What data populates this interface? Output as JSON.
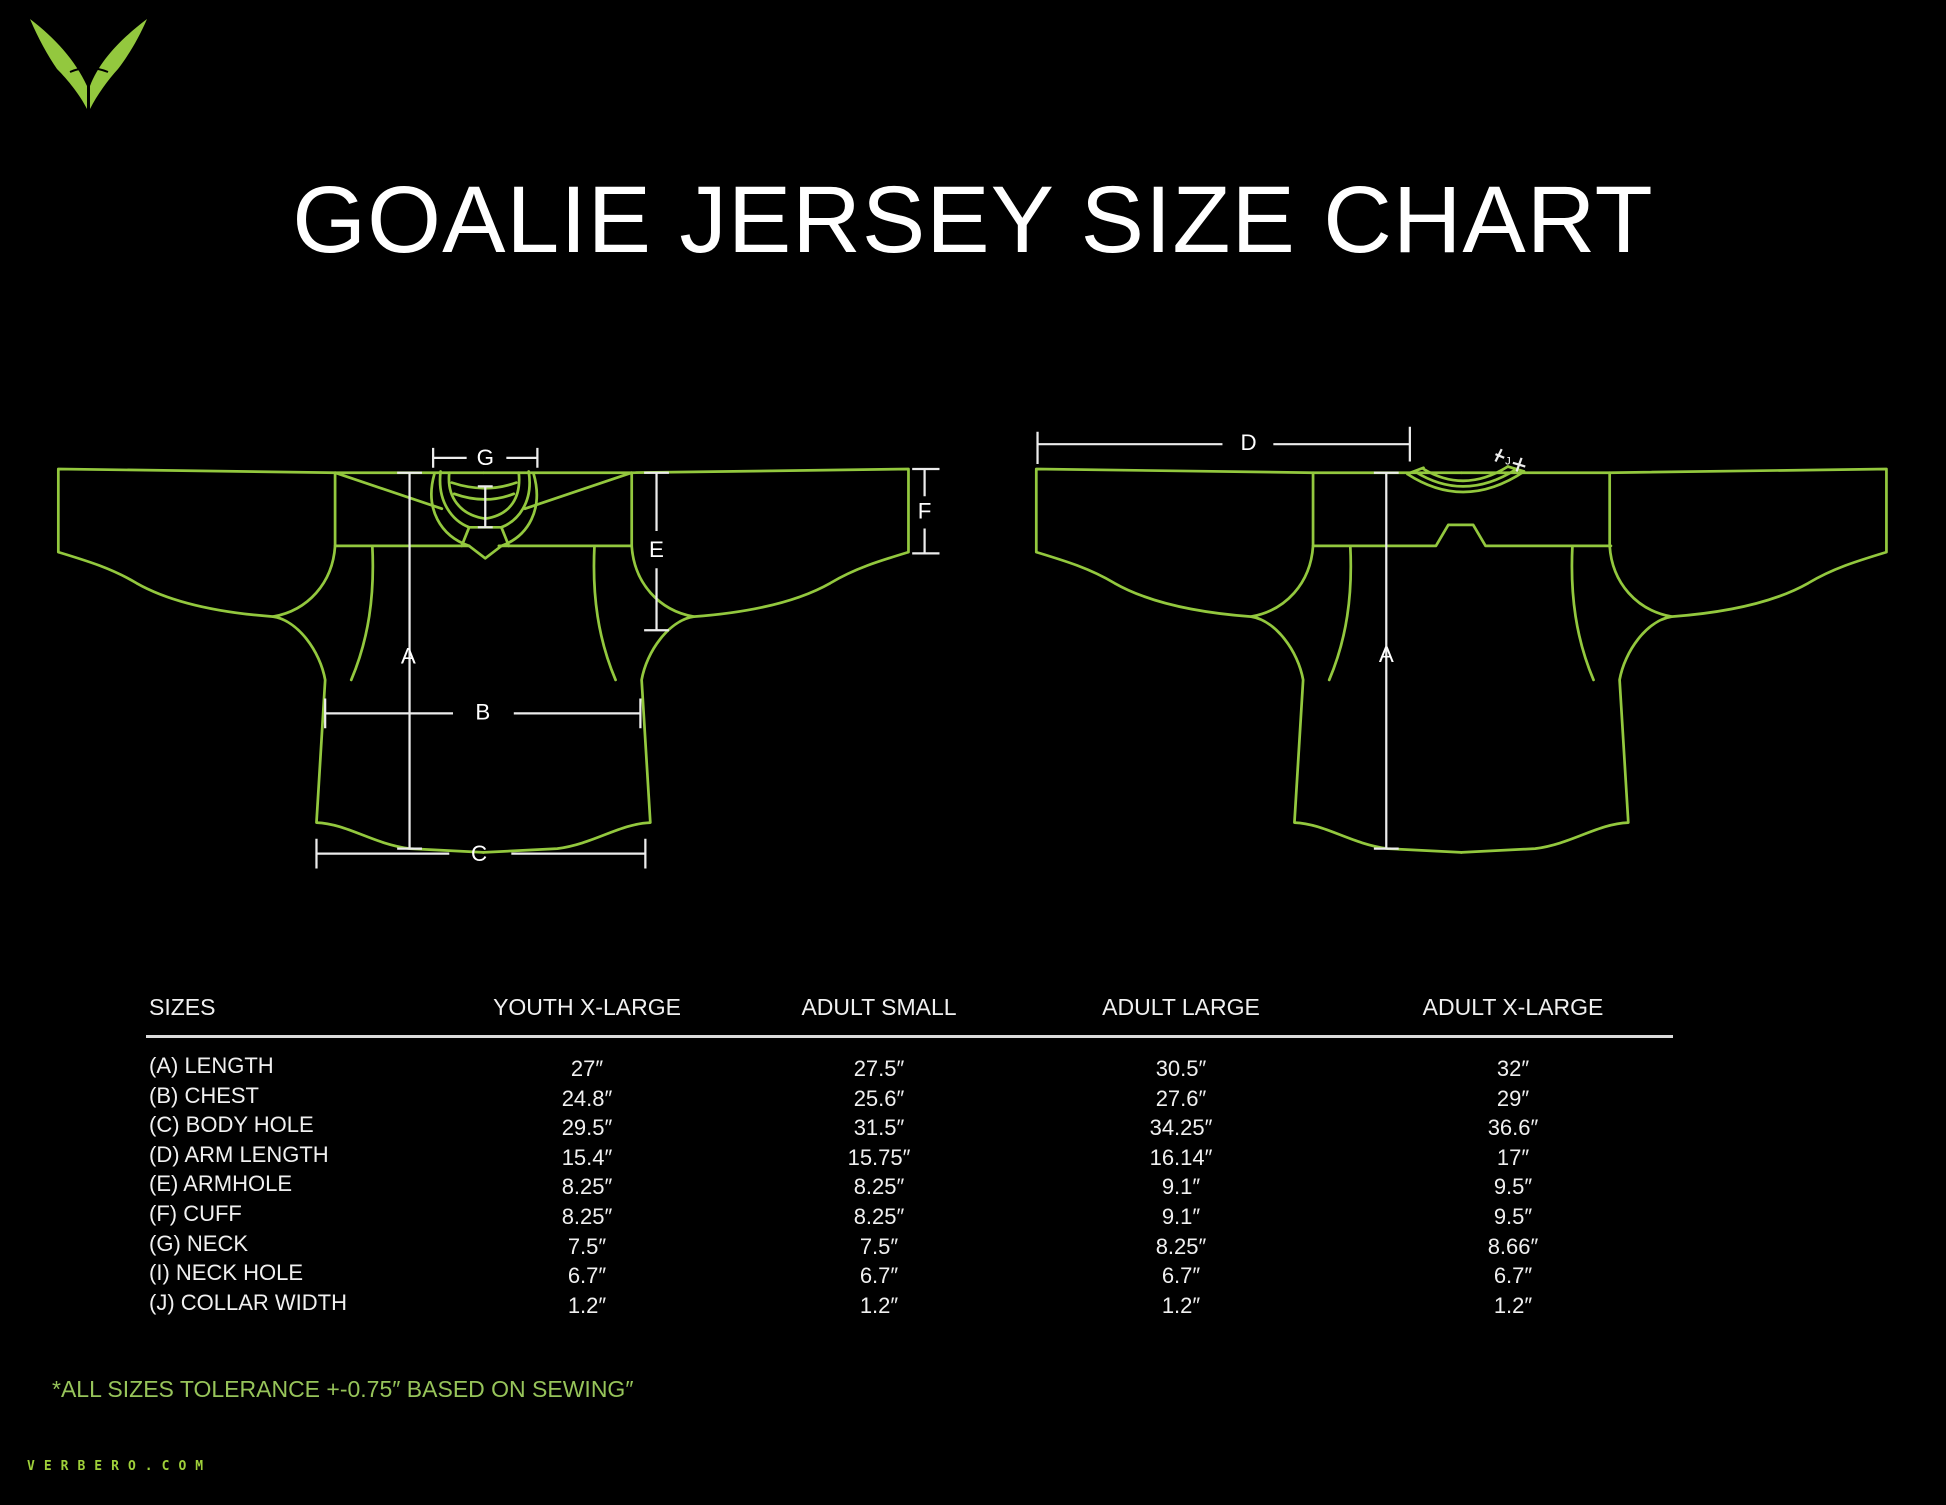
{
  "title": "GOALIE JERSEY SIZE CHART",
  "colors": {
    "accent": "#93c83e",
    "background": "#000000",
    "text": "#ffffff",
    "footnote": "#97c45a"
  },
  "logo": {
    "icon": "verbero-v-logo"
  },
  "diagram": {
    "front": {
      "A": "A",
      "B": "B",
      "C": "C",
      "E": "E",
      "F": "F",
      "G": "G"
    },
    "back": {
      "D": "D",
      "A": "A",
      "J": "J"
    }
  },
  "table": {
    "header": "SIZES",
    "columns": [
      "YOUTH X-LARGE",
      "ADULT SMALL",
      "ADULT LARGE",
      "ADULT X-LARGE"
    ],
    "rows": [
      {
        "label": "(A) LENGTH",
        "values": [
          "27″",
          "27.5″",
          "30.5″",
          "32″"
        ]
      },
      {
        "label": "(B) CHEST",
        "values": [
          "24.8″",
          "25.6″",
          "27.6″",
          "29″"
        ]
      },
      {
        "label": "(C) BODY HOLE",
        "values": [
          "29.5″",
          "31.5″",
          "34.25″",
          "36.6″"
        ]
      },
      {
        "label": "(D) ARM LENGTH",
        "values": [
          "15.4″",
          "15.75″",
          "16.14″",
          "17″"
        ]
      },
      {
        "label": "(E) ARMHOLE",
        "values": [
          "8.25″",
          "8.25″",
          "9.1″",
          "9.5″"
        ]
      },
      {
        "label": "(F) CUFF",
        "values": [
          "8.25″",
          "8.25″",
          "9.1″",
          "9.5″"
        ]
      },
      {
        "label": "(G) NECK",
        "values": [
          "7.5″",
          "7.5″",
          "8.25″",
          "8.66″"
        ]
      },
      {
        "label": "(I) NECK HOLE",
        "values": [
          "6.7″",
          "6.7″",
          "6.7″",
          "6.7″"
        ]
      },
      {
        "label": "(J) COLLAR WIDTH",
        "values": [
          "1.2″",
          "1.2″",
          "1.2″",
          "1.2″"
        ]
      }
    ]
  },
  "footnote": "*ALL SIZES TOLERANCE +-0.75″ BASED ON SEWING″",
  "website": "VERBERO.COM"
}
